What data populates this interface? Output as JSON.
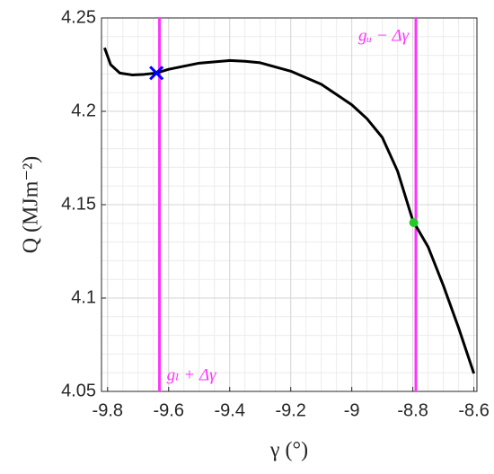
{
  "chart_data": {
    "type": "line",
    "x_label": "γ (°)",
    "y_label": "Q (MJm⁻²)",
    "x": [
      -9.81,
      -9.79,
      -9.76,
      -9.72,
      -9.68,
      -9.64,
      -9.6,
      -9.5,
      -9.4,
      -9.35,
      -9.3,
      -9.2,
      -9.1,
      -9.0,
      -8.95,
      -8.9,
      -8.85,
      -8.8,
      -8.75,
      -8.7,
      -8.65,
      -8.6
    ],
    "series": [
      {
        "color": "#000000",
        "values": [
          4.234,
          4.225,
          4.2205,
          4.2195,
          4.2198,
          4.2205,
          4.2225,
          4.2258,
          4.2272,
          4.2268,
          4.226,
          4.2215,
          4.2145,
          4.2035,
          4.196,
          4.186,
          4.168,
          4.1415,
          4.1274,
          4.1067,
          4.084,
          4.0596
        ]
      }
    ],
    "xlim": [
      -9.82,
      -8.59
    ],
    "ylim": [
      4.05,
      4.25
    ],
    "xticks": [
      -9.8,
      -9.6,
      -9.4,
      -9.2,
      -9,
      -8.8,
      -8.6
    ],
    "yticks": [
      4.05,
      4.1,
      4.15,
      4.2,
      4.25
    ],
    "grid": true,
    "minor_grid": true,
    "vlines": [
      {
        "x": -9.63,
        "color": "#ff33ff",
        "label": "gₗ + Δγ"
      },
      {
        "x": -8.79,
        "color": "#ff33ff",
        "label": "gᵤ − Δγ"
      }
    ],
    "markers": [
      {
        "x": -9.64,
        "y": 4.2205,
        "shape": "cross",
        "color": "#0000ff"
      },
      {
        "x": -8.797,
        "y": 4.1404,
        "shape": "dot",
        "color": "#22cc22"
      }
    ]
  }
}
